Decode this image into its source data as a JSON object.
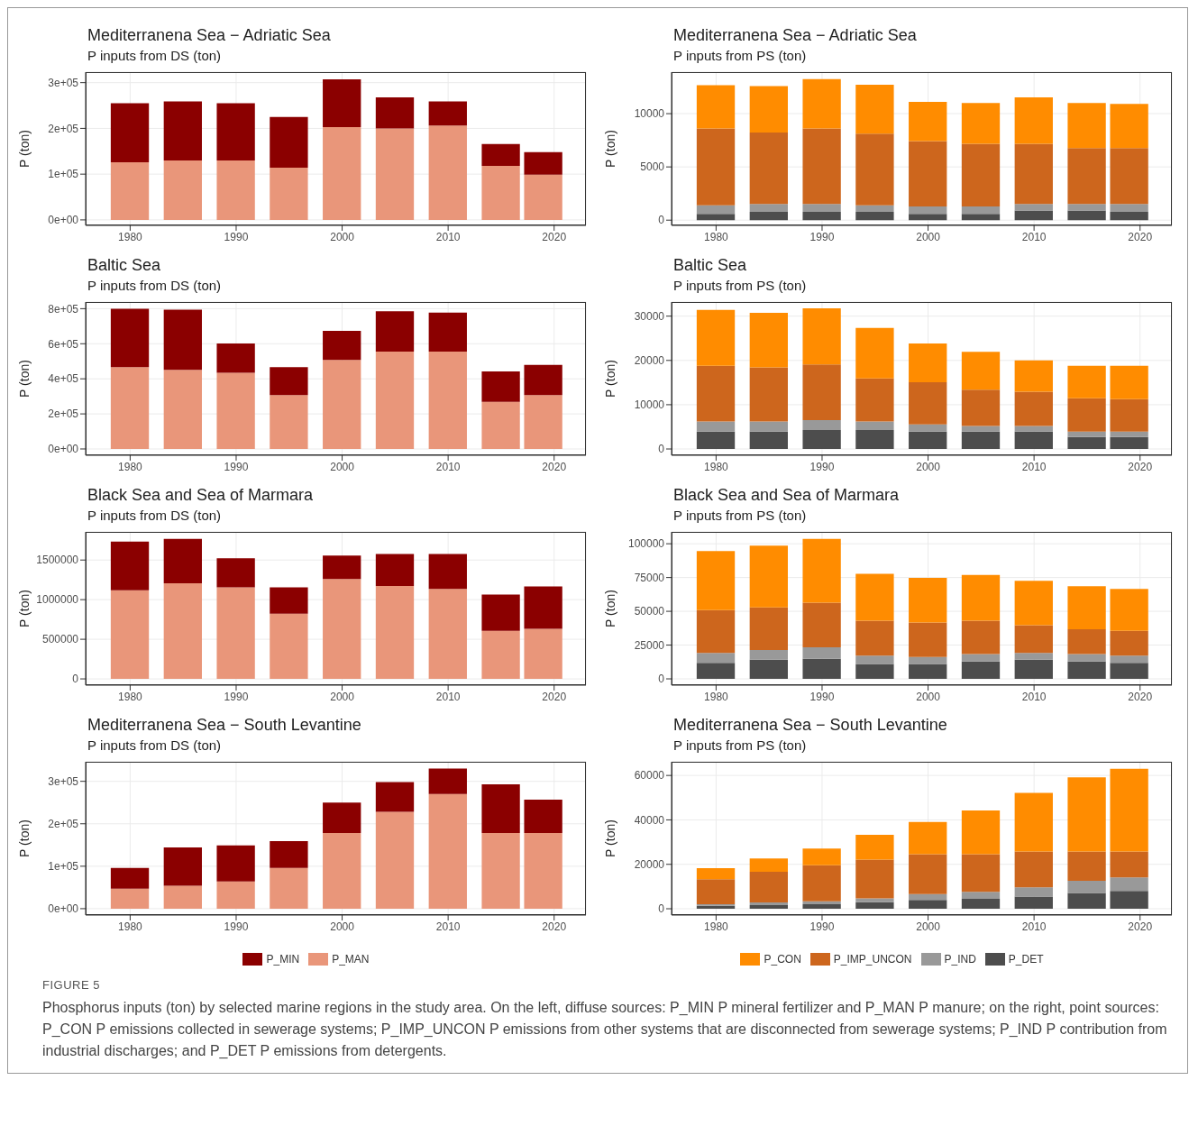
{
  "chart_data": [
    {
      "type": "bar",
      "title": "Mediterranena Sea − Adriatic Sea",
      "subtitle": "P inputs from DS (ton)",
      "ylabel": "P (ton)",
      "x": [
        1980,
        1985,
        1990,
        1995,
        2000,
        2005,
        2010,
        2015,
        2019
      ],
      "xlim": [
        1975.8,
        2023
      ],
      "xticks": [
        1980,
        1990,
        2000,
        2010,
        2020
      ],
      "ylim": [
        -12000,
        323000
      ],
      "yticks": [
        {
          "value": 0,
          "label": "0e+00"
        },
        {
          "value": 100000,
          "label": "1e+05"
        },
        {
          "value": 200000,
          "label": "2e+05"
        },
        {
          "value": 300000,
          "label": "3e+05"
        }
      ],
      "stacked": true,
      "grid": true,
      "series": [
        {
          "color": "#e9967a",
          "values": [
            126000,
            130000,
            130000,
            114000,
            203000,
            200000,
            206000,
            118000,
            99000
          ]
        },
        {
          "color": "#8b0000",
          "values": [
            129000,
            129000,
            125000,
            111000,
            104000,
            68000,
            53000,
            48000,
            49000
          ]
        }
      ]
    },
    {
      "type": "bar",
      "title": "Mediterranena Sea − Adriatic Sea",
      "subtitle": "P inputs from PS (ton)",
      "ylabel": "P (ton)",
      "x": [
        1980,
        1985,
        1990,
        1995,
        2000,
        2005,
        2010,
        2015,
        2019
      ],
      "xlim": [
        1975.8,
        2023
      ],
      "xticks": [
        1980,
        1990,
        2000,
        2010,
        2020
      ],
      "ylim": [
        -490,
        13900
      ],
      "yticks": [
        0,
        5000,
        10000
      ],
      "stacked": true,
      "grid": true,
      "series": [
        {
          "color": "#4d4d4d",
          "values": [
            590,
            770,
            770,
            770,
            590,
            590,
            910,
            910,
            770
          ]
        },
        {
          "color": "#999999",
          "values": [
            800,
            760,
            760,
            620,
            700,
            700,
            620,
            620,
            760
          ]
        },
        {
          "color": "#cd661d",
          "values": [
            7220,
            6690,
            7080,
            6730,
            6130,
            5890,
            5650,
            5230,
            5230
          ]
        },
        {
          "color": "#ff8c00",
          "values": [
            4070,
            4360,
            4630,
            4600,
            3690,
            3830,
            4350,
            4250,
            4150
          ]
        }
      ]
    },
    {
      "type": "bar",
      "title": "Baltic Sea",
      "subtitle": "P inputs from DS (ton)",
      "ylabel": "P (ton)",
      "x": [
        1980,
        1985,
        1990,
        1995,
        2000,
        2005,
        2010,
        2015,
        2019
      ],
      "xlim": [
        1975.8,
        2023
      ],
      "xticks": [
        1980,
        1990,
        2000,
        2010,
        2020
      ],
      "ylim": [
        -36000,
        838000
      ],
      "yticks": [
        {
          "value": 0,
          "label": "0e+00"
        },
        {
          "value": 200000,
          "label": "2e+05"
        },
        {
          "value": 400000,
          "label": "4e+05"
        },
        {
          "value": 600000,
          "label": "6e+05"
        },
        {
          "value": 800000,
          "label": "8e+05"
        }
      ],
      "stacked": true,
      "grid": true,
      "series": [
        {
          "color": "#e9967a",
          "values": [
            466000,
            451000,
            434000,
            307000,
            508000,
            555000,
            555000,
            269000,
            307000
          ]
        },
        {
          "color": "#8b0000",
          "values": [
            334000,
            343000,
            167000,
            159000,
            165000,
            230000,
            222000,
            173000,
            173000
          ]
        }
      ]
    },
    {
      "type": "bar",
      "title": "Baltic Sea",
      "subtitle": "P inputs from PS (ton)",
      "ylabel": "P (ton)",
      "x": [
        1980,
        1985,
        1990,
        1995,
        2000,
        2005,
        2010,
        2015,
        2019
      ],
      "xlim": [
        1975.8,
        2023
      ],
      "xticks": [
        1980,
        1990,
        2000,
        2010,
        2020
      ],
      "ylim": [
        -1420,
        33190
      ],
      "yticks": [
        0,
        10000,
        20000,
        30000
      ],
      "stacked": true,
      "grid": true,
      "series": [
        {
          "color": "#4d4d4d",
          "values": [
            3940,
            3940,
            4270,
            4270,
            3940,
            3940,
            3940,
            2680,
            2680
          ]
        },
        {
          "color": "#999999",
          "values": [
            2260,
            2260,
            2270,
            1930,
            1590,
            1260,
            1260,
            1260,
            1260
          ]
        },
        {
          "color": "#cd661d",
          "values": [
            12580,
            12240,
            12570,
            9730,
            9560,
            8210,
            7710,
            7540,
            7290
          ]
        },
        {
          "color": "#ff8c00",
          "values": [
            12650,
            12320,
            12660,
            11400,
            8720,
            8550,
            7120,
            7300,
            7550
          ]
        }
      ]
    },
    {
      "type": "bar",
      "title": "Black Sea and Sea of Marmara",
      "subtitle": "P inputs from DS (ton)",
      "ylabel": "P (ton)",
      "x": [
        1980,
        1985,
        1990,
        1995,
        2000,
        2005,
        2010,
        2015,
        2019
      ],
      "xlim": [
        1975.8,
        2023
      ],
      "xticks": [
        1980,
        1990,
        2000,
        2010,
        2020
      ],
      "ylim": [
        -79000,
        1855000
      ],
      "yticks": [
        0,
        500000,
        1000000,
        1500000
      ],
      "stacked": true,
      "grid": true,
      "series": [
        {
          "color": "#e9967a",
          "values": [
            1117000,
            1206000,
            1154000,
            822000,
            1262000,
            1173000,
            1136000,
            607000,
            631000
          ]
        },
        {
          "color": "#8b0000",
          "values": [
            617000,
            560000,
            369000,
            332000,
            294000,
            402000,
            439000,
            458000,
            537000
          ]
        }
      ]
    },
    {
      "type": "bar",
      "title": "Black Sea and Sea of Marmara",
      "subtitle": "P inputs from PS (ton)",
      "ylabel": "P (ton)",
      "x": [
        1980,
        1985,
        1990,
        1995,
        2000,
        2005,
        2010,
        2015,
        2019
      ],
      "xlim": [
        1975.8,
        2023
      ],
      "xticks": [
        1980,
        1990,
        2000,
        2010,
        2020
      ],
      "ylim": [
        -4660,
        108770
      ],
      "yticks": [
        0,
        25000,
        50000,
        75000,
        100000
      ],
      "stacked": true,
      "grid": true,
      "series": [
        {
          "color": "#4d4d4d",
          "values": [
            11780,
            14250,
            14790,
            10960,
            10960,
            12880,
            14250,
            12880,
            11780
          ]
        },
        {
          "color": "#999999",
          "values": [
            7400,
            7120,
            8500,
            6300,
            5200,
            5480,
            4930,
            5480,
            5480
          ]
        },
        {
          "color": "#cd661d",
          "values": [
            31780,
            31510,
            33150,
            25750,
            25480,
            24650,
            20550,
            18350,
            18360
          ]
        },
        {
          "color": "#ff8c00",
          "values": [
            43560,
            45750,
            47120,
            34800,
            33150,
            33980,
            32870,
            31780,
            30960
          ]
        }
      ]
    },
    {
      "type": "bar",
      "title": "Mediterranena Sea − South Levantine",
      "subtitle": "P inputs from DS (ton)",
      "ylabel": "P (ton)",
      "x": [
        1980,
        1985,
        1990,
        1995,
        2000,
        2005,
        2010,
        2015,
        2019
      ],
      "xlim": [
        1975.8,
        2023
      ],
      "xticks": [
        1980,
        1990,
        2000,
        2010,
        2020
      ],
      "ylim": [
        -15000,
        346000
      ],
      "yticks": [
        {
          "value": 0,
          "label": "0e+00"
        },
        {
          "value": 100000,
          "label": "1e+05"
        },
        {
          "value": 200000,
          "label": "2e+05"
        },
        {
          "value": 300000,
          "label": "3e+05"
        }
      ],
      "stacked": true,
      "grid": true,
      "legend": "bottom",
      "series": [
        {
          "name": "P_MAN",
          "color": "#e9967a",
          "values": [
            47000,
            54000,
            64000,
            96000,
            178000,
            228000,
            270000,
            178000,
            178000
          ]
        },
        {
          "name": "P_MIN",
          "color": "#8b0000",
          "values": [
            49000,
            90000,
            85000,
            63000,
            72000,
            70000,
            60000,
            115000,
            79000
          ]
        }
      ]
    },
    {
      "type": "bar",
      "title": "Mediterranena Sea − South Levantine",
      "subtitle": "P inputs from PS (ton)",
      "ylabel": "P (ton)",
      "x": [
        1980,
        1985,
        1990,
        1995,
        2000,
        2005,
        2010,
        2015,
        2019
      ],
      "xlim": [
        1975.8,
        2023
      ],
      "xticks": [
        1980,
        1990,
        2000,
        2010,
        2020
      ],
      "ylim": [
        -2830,
        66150
      ],
      "yticks": [
        0,
        20000,
        40000,
        60000
      ],
      "stacked": true,
      "grid": true,
      "legend": "bottom",
      "annotations": [
        "FIGURE 5",
        "Phosphorus inputs (ton) by selected marine regions in the study area. On the left, diffuse sources: P_MIN P mineral fertilizer and P_MAN P manure; on the right, point sources: P_CON P emissions collected in sewerage systems; P_IMP_UNCON P emissions from other systems that are disconnected from sewerage systems; P_IND P contribution from industrial discharges; and P_DET P emissions from detergents."
      ],
      "series": [
        {
          "name": "P_DET",
          "color": "#4d4d4d",
          "values": [
            1330,
            1660,
            1990,
            2990,
            3990,
            4490,
            5480,
            7150,
            7980
          ]
        },
        {
          "name": "P_IND",
          "color": "#999999",
          "values": [
            660,
            1170,
            1330,
            1660,
            2660,
            3160,
            4160,
            5480,
            6150
          ]
        },
        {
          "name": "P_IMP_UNCON",
          "color": "#cd661d",
          "values": [
            11310,
            13790,
            16290,
            17450,
            17950,
            16950,
            16120,
            13130,
            11630
          ]
        },
        {
          "name": "P_CON",
          "color": "#ff8c00",
          "values": [
            4980,
            5980,
            7480,
            11140,
            14460,
            19610,
            26430,
            33410,
            37230
          ]
        }
      ]
    }
  ]
}
